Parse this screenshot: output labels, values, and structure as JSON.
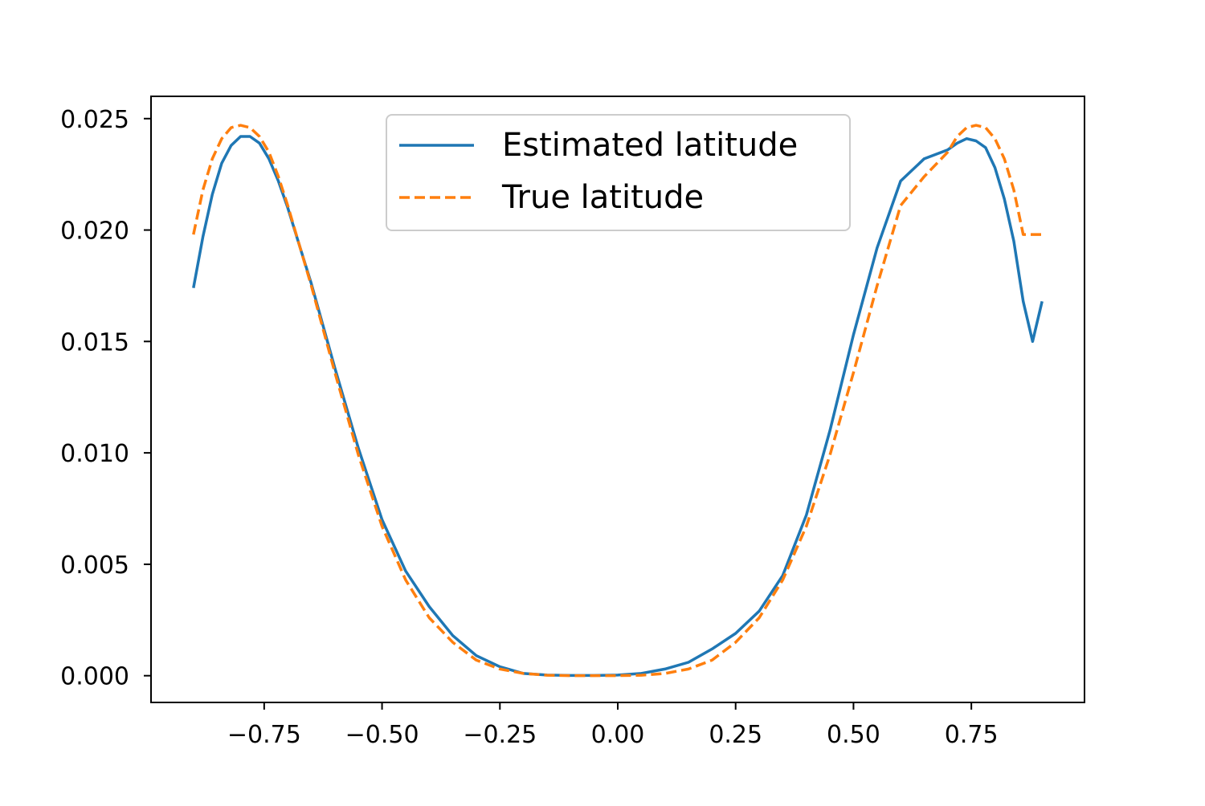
{
  "chart_data": {
    "type": "line",
    "title": "",
    "xlabel": "",
    "ylabel": "",
    "xlim": [
      -0.99,
      0.99
    ],
    "ylim": [
      -0.0012,
      0.026
    ],
    "grid": false,
    "legend": {
      "placement": "top-center",
      "entries": [
        {
          "label": "Estimated latitude",
          "series": 0
        },
        {
          "label": "True latitude",
          "series": 1
        }
      ]
    },
    "x_ticks": [
      -0.75,
      -0.5,
      -0.25,
      0.0,
      0.25,
      0.5,
      0.75
    ],
    "x_tick_labels": [
      "−0.75",
      "−0.50",
      "−0.25",
      "0.00",
      "0.25",
      "0.50",
      "0.75"
    ],
    "y_ticks": [
      0.0,
      0.005,
      0.01,
      0.015,
      0.02,
      0.025
    ],
    "y_tick_labels": [
      "0.000",
      "0.005",
      "0.010",
      "0.015",
      "0.020",
      "0.025"
    ],
    "series": [
      {
        "name": "Estimated latitude",
        "color": "#1f77b4",
        "style": "solid",
        "x": [
          -0.9,
          -0.88,
          -0.86,
          -0.84,
          -0.82,
          -0.8,
          -0.78,
          -0.76,
          -0.74,
          -0.72,
          -0.7,
          -0.65,
          -0.6,
          -0.55,
          -0.5,
          -0.45,
          -0.4,
          -0.35,
          -0.3,
          -0.25,
          -0.2,
          -0.15,
          -0.1,
          -0.05,
          0.0,
          0.05,
          0.1,
          0.15,
          0.2,
          0.25,
          0.3,
          0.35,
          0.4,
          0.45,
          0.5,
          0.55,
          0.6,
          0.65,
          0.7,
          0.72,
          0.74,
          0.76,
          0.78,
          0.8,
          0.82,
          0.84,
          0.86,
          0.88,
          0.9
        ],
        "y": [
          0.0174,
          0.0197,
          0.0216,
          0.023,
          0.0238,
          0.0242,
          0.0242,
          0.0239,
          0.0232,
          0.0222,
          0.021,
          0.0176,
          0.0138,
          0.0102,
          0.007,
          0.0047,
          0.0031,
          0.0018,
          0.0009,
          0.0004,
          0.0001,
          3e-05,
          1e-05,
          1e-05,
          3e-05,
          0.0001,
          0.0003,
          0.0006,
          0.0012,
          0.0019,
          0.0029,
          0.0045,
          0.0072,
          0.011,
          0.0153,
          0.0192,
          0.0222,
          0.0232,
          0.0236,
          0.0239,
          0.0241,
          0.024,
          0.0237,
          0.0228,
          0.0214,
          0.0195,
          0.0168,
          0.015,
          0.0168
        ]
      },
      {
        "name": "True latitude",
        "color": "#ff7f0e",
        "style": "dashed",
        "x": [
          -0.9,
          -0.88,
          -0.86,
          -0.84,
          -0.82,
          -0.8,
          -0.78,
          -0.76,
          -0.74,
          -0.72,
          -0.7,
          -0.65,
          -0.6,
          -0.55,
          -0.5,
          -0.45,
          -0.4,
          -0.35,
          -0.3,
          -0.25,
          -0.2,
          -0.15,
          -0.1,
          -0.05,
          0.0,
          0.05,
          0.1,
          0.15,
          0.2,
          0.25,
          0.3,
          0.35,
          0.4,
          0.45,
          0.5,
          0.55,
          0.6,
          0.65,
          0.7,
          0.72,
          0.74,
          0.76,
          0.78,
          0.8,
          0.82,
          0.84,
          0.86,
          0.88,
          0.9
        ],
        "y": [
          0.0198,
          0.0218,
          0.0232,
          0.0241,
          0.0246,
          0.0247,
          0.0246,
          0.0242,
          0.0235,
          0.0224,
          0.0211,
          0.0175,
          0.0136,
          0.0099,
          0.0067,
          0.0043,
          0.0026,
          0.0015,
          0.0007,
          0.0003,
          0.0001,
          2e-05,
          5e-06,
          2e-06,
          5e-06,
          2e-05,
          0.0001,
          0.0003,
          0.0007,
          0.0015,
          0.0026,
          0.0043,
          0.0067,
          0.0099,
          0.0136,
          0.0175,
          0.0211,
          0.0224,
          0.0235,
          0.0242,
          0.0246,
          0.0247,
          0.0246,
          0.0241,
          0.0232,
          0.0218,
          0.0198,
          0.0198,
          0.0198
        ]
      }
    ]
  }
}
